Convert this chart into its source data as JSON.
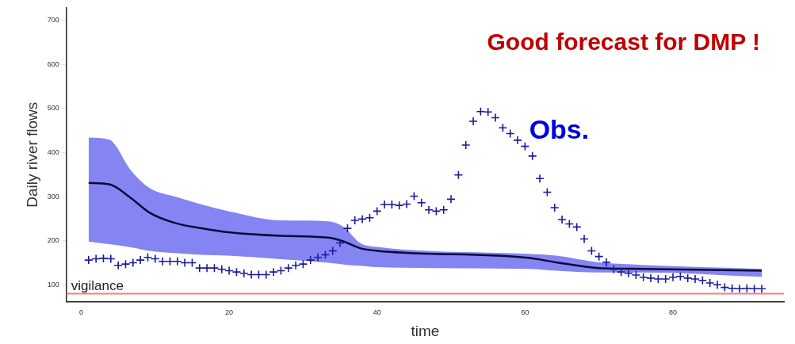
{
  "chart_data": {
    "type": "line",
    "xlabel": "time",
    "ylabel": "Daily river flows",
    "xlim": [
      -2,
      95
    ],
    "ylim": [
      62,
      728
    ],
    "xticks": [
      0,
      20,
      40,
      60,
      80
    ],
    "yticks": [
      100,
      200,
      300,
      400,
      500,
      600,
      700
    ],
    "grid": false,
    "legend": false,
    "series": [
      {
        "color": "#0a0a3a",
        "marker": "none",
        "x": [
          1,
          3.8,
          6.7,
          9.2,
          12.7,
          16.3,
          19.9,
          27,
          33.4,
          35.5,
          37.7,
          40,
          60.4,
          64.2,
          69.9,
          75.7,
          92
        ],
        "values": [
          331,
          328,
          297,
          264,
          240,
          228,
          219,
          211,
          207,
          198,
          183,
          177,
          161,
          151,
          138,
          136,
          132
        ],
        "lower": [
          198,
          192,
          185,
          177,
          172,
          168,
          166,
          158,
          150,
          146,
          143,
          140,
          136,
          132,
          128,
          128,
          118
        ],
        "upper": [
          434,
          429,
          360,
          320,
          300,
          282,
          267,
          246,
          244,
          231,
          195,
          186,
          170,
          166,
          151,
          145,
          136
        ]
      },
      {
        "type": "scatter",
        "color": "#1a1aa0",
        "marker": "cross",
        "x": [
          1,
          2,
          3,
          4,
          5,
          6,
          7,
          8,
          9,
          10,
          11,
          12,
          13,
          14,
          15,
          16,
          17,
          18,
          19,
          20,
          21,
          22,
          23,
          24,
          25,
          26,
          27,
          28,
          29,
          30,
          31,
          32,
          33,
          34,
          35,
          36,
          37,
          38,
          39,
          40,
          41,
          42,
          43,
          44,
          45,
          46,
          47,
          48,
          49,
          50,
          51,
          52,
          53,
          54,
          55,
          56,
          57,
          58,
          59,
          60,
          61,
          62,
          63,
          64,
          65,
          66,
          67,
          68,
          69,
          70,
          71,
          72,
          73,
          74,
          75,
          76,
          77,
          78,
          79,
          80,
          81,
          82,
          83,
          84,
          85,
          86,
          87,
          88,
          89,
          90,
          91,
          92
        ],
        "values": [
          156,
          159,
          160,
          159,
          144,
          147,
          150,
          156,
          162,
          159,
          153,
          153,
          153,
          150,
          150,
          138,
          138,
          138,
          135,
          132,
          129,
          126,
          123,
          123,
          123,
          129,
          132,
          138,
          144,
          147,
          156,
          162,
          168,
          177,
          195,
          228,
          246,
          249,
          252,
          267,
          282,
          282,
          280,
          283,
          301,
          286,
          270,
          267,
          270,
          294,
          349,
          417,
          471,
          493,
          492,
          479,
          456,
          443,
          428,
          414,
          392,
          341,
          310,
          275,
          248,
          238,
          231,
          204,
          177,
          164,
          151,
          135,
          129,
          126,
          122,
          117,
          115,
          113,
          113,
          117,
          119,
          115,
          113,
          110,
          104,
          100,
          94,
          92,
          91,
          92,
          91,
          91
        ]
      }
    ],
    "ref_lines": [
      {
        "axis": "y",
        "value": 80,
        "label": "vigilance",
        "color": "#f08080"
      }
    ],
    "annotations": [
      "Good forecast for DMP !",
      "Obs."
    ]
  }
}
